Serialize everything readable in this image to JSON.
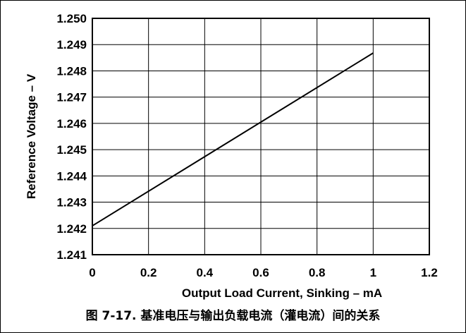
{
  "caption": "图 7-17. 基准电压与输出负载电流（灌电流）间的关系",
  "chart_data": {
    "type": "line",
    "xlabel": "Output Load Current, Sinking – mA",
    "ylabel": "Reference Voltage – V",
    "xlim": [
      0,
      1.2
    ],
    "ylim": [
      1.241,
      1.25
    ],
    "xticks": [
      "0",
      "0.2",
      "0.4",
      "0.6",
      "0.8",
      "1",
      "1.2"
    ],
    "yticks": [
      "1.241",
      "1.242",
      "1.243",
      "1.244",
      "1.245",
      "1.246",
      "1.247",
      "1.248",
      "1.249",
      "1.250"
    ],
    "grid": true,
    "series": [
      {
        "x": [
          0,
          1.0
        ],
        "y": [
          1.2421,
          1.24868
        ],
        "color": "#000000"
      }
    ]
  }
}
